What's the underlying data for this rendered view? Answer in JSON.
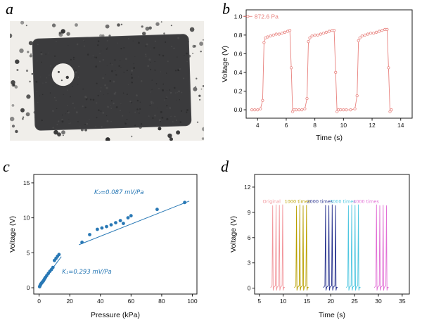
{
  "panels": {
    "a": {
      "label": "a"
    },
    "b": {
      "label": "b"
    },
    "c": {
      "label": "c"
    },
    "d": {
      "label": "d"
    }
  },
  "photo": {
    "background_color": "#f0eeea",
    "foam_color": "#3b3b3d"
  },
  "chart_data": [
    {
      "id": "chart-b",
      "type": "line",
      "title": "",
      "xlabel": "Time (s)",
      "ylabel": "Voltage (V)",
      "xlim": [
        3.2,
        14.8
      ],
      "ylim": [
        -0.09,
        1.07
      ],
      "xticks": [
        4,
        6,
        8,
        10,
        12,
        14
      ],
      "yticks": [
        0,
        0.2,
        0.4,
        0.6,
        0.8,
        1
      ],
      "ytick_labels": [
        "0.0",
        "0.2",
        "0.4",
        "0.6",
        "0.8",
        "1.0"
      ],
      "legend": {
        "label": "872.6 Pa",
        "color": "#e8817d",
        "x": 3.78,
        "y": 1.0
      },
      "series": [
        {
          "name": "872.6-Pa",
          "color": "#e8817d",
          "marker": "circle-open",
          "line": true,
          "x": [
            3.6,
            3.8,
            4.0,
            4.2,
            4.35,
            4.45,
            4.55,
            4.7,
            4.9,
            5.1,
            5.3,
            5.5,
            5.7,
            5.9,
            6.1,
            6.25,
            6.35,
            6.45,
            6.55,
            6.7,
            6.9,
            7.1,
            7.3,
            7.45,
            7.55,
            7.65,
            7.8,
            8.0,
            8.2,
            8.4,
            8.6,
            8.8,
            9.0,
            9.2,
            9.35,
            9.45,
            9.55,
            9.65,
            9.8,
            10.0,
            10.2,
            10.5,
            10.8,
            10.95,
            11.05,
            11.15,
            11.3,
            11.5,
            11.7,
            11.9,
            12.1,
            12.3,
            12.5,
            12.7,
            12.9,
            13.05,
            13.15,
            13.25,
            13.35
          ],
          "y": [
            0.0,
            0.0,
            0.0,
            0.01,
            0.1,
            0.72,
            0.77,
            0.78,
            0.79,
            0.8,
            0.81,
            0.81,
            0.82,
            0.83,
            0.84,
            0.85,
            0.45,
            -0.02,
            0.0,
            0.0,
            0.0,
            0.0,
            0.01,
            0.12,
            0.73,
            0.77,
            0.79,
            0.8,
            0.8,
            0.81,
            0.82,
            0.83,
            0.84,
            0.85,
            0.85,
            0.4,
            -0.02,
            0.0,
            0.0,
            0.0,
            0.0,
            0.0,
            0.01,
            0.15,
            0.74,
            0.77,
            0.79,
            0.8,
            0.81,
            0.82,
            0.82,
            0.83,
            0.84,
            0.85,
            0.86,
            0.86,
            0.45,
            -0.02,
            0.0
          ]
        }
      ]
    },
    {
      "id": "chart-c",
      "type": "scatter",
      "title": "",
      "xlabel": "Pressure (kPa)",
      "ylabel": "Voltage (V)",
      "xlim": [
        -3.5,
        103
      ],
      "ylim": [
        -0.9,
        16.2
      ],
      "xticks": [
        0,
        20,
        40,
        60,
        80,
        100
      ],
      "yticks": [
        0,
        5,
        10,
        15
      ],
      "series": [
        {
          "name": "pressure-response",
          "color": "#2878b5",
          "marker": "circle",
          "line": false,
          "x": [
            0.3,
            0.6,
            0.9,
            1.2,
            1.5,
            1.9,
            2.3,
            2.7,
            3.1,
            3.6,
            4.2,
            5.0,
            6.0,
            7.0,
            8.0,
            9.0,
            10.0,
            11.0,
            12.0,
            13.0,
            28,
            33,
            38,
            41,
            44,
            47,
            50,
            53,
            55,
            58,
            60,
            77,
            95
          ],
          "y": [
            0.15,
            0.3,
            0.45,
            0.55,
            0.65,
            0.75,
            0.85,
            0.95,
            1.1,
            1.3,
            1.5,
            1.75,
            2.05,
            2.35,
            2.6,
            2.9,
            3.9,
            4.2,
            4.5,
            4.75,
            6.5,
            7.6,
            8.35,
            8.55,
            8.75,
            9.0,
            9.3,
            9.6,
            9.2,
            10.0,
            10.3,
            11.2,
            12.2
          ]
        },
        {
          "name": "fit-K1",
          "color": "#2878b5",
          "marker": "none",
          "line": true,
          "width": 1,
          "x": [
            0,
            14.5
          ],
          "y": [
            0.2,
            4.45
          ]
        },
        {
          "name": "fit-K2",
          "color": "#2878b5",
          "marker": "none",
          "line": true,
          "width": 1,
          "x": [
            26,
            98
          ],
          "y": [
            6.15,
            12.4
          ]
        }
      ],
      "annotations": [
        {
          "text": "K₂=0.087 mV/Pa",
          "x": 36,
          "y": 13.4,
          "color": "#2878b5",
          "italic": true,
          "size": 8.5
        },
        {
          "text": "K₁=0.293 mV/Pa",
          "x": 15,
          "y": 2.0,
          "color": "#2878b5",
          "italic": true,
          "size": 8.5
        }
      ]
    },
    {
      "id": "chart-d",
      "type": "line",
      "title": "",
      "xlabel": "Time (s)",
      "ylabel": "Voltage (V)",
      "xlim": [
        4,
        36.5
      ],
      "ylim": [
        -0.7,
        13.5
      ],
      "xticks": [
        5,
        10,
        15,
        20,
        25,
        30,
        35
      ],
      "yticks": [
        0,
        3,
        6,
        9,
        12
      ],
      "series": [
        {
          "name": "original",
          "color": "#f2959b",
          "spike_x": [
            7.8,
            8.5,
            9.2,
            9.9
          ],
          "peaks": [
            9.8,
            9.9,
            9.85,
            9.9
          ],
          "line": true
        },
        {
          "name": "1000-times",
          "color": "#b9a000",
          "spike_x": [
            12.8,
            13.5,
            14.2,
            14.9
          ],
          "peaks": [
            9.75,
            9.9,
            9.8,
            9.85
          ],
          "line": true
        },
        {
          "name": "2000-times",
          "color": "#232e8c",
          "spike_x": [
            18.9,
            19.6,
            20.3,
            21.0
          ],
          "peaks": [
            9.85,
            9.8,
            9.9,
            9.8
          ],
          "line": true
        },
        {
          "name": "3000-times",
          "color": "#4cc6e0",
          "spike_x": [
            23.7,
            24.4,
            25.1,
            25.8
          ],
          "peaks": [
            9.8,
            9.9,
            9.85,
            9.9
          ],
          "line": true
        },
        {
          "name": "4000-times",
          "color": "#e26ed5",
          "spike_x": [
            29.6,
            30.3,
            31.0,
            31.7
          ],
          "peaks": [
            9.9,
            9.8,
            9.85,
            9.8
          ],
          "line": true
        }
      ],
      "annotations": [
        {
          "text": "Original",
          "x": 5.7,
          "y": 10.1,
          "color": "#f2959b",
          "size": 6.5
        },
        {
          "text": "1000 times",
          "x": 10.3,
          "y": 10.1,
          "color": "#b9a000",
          "size": 6.5
        },
        {
          "text": "2000 times",
          "x": 15.0,
          "y": 10.1,
          "color": "#232e8c",
          "size": 6.5
        },
        {
          "text": "3000 times",
          "x": 19.8,
          "y": 10.1,
          "color": "#4cc6e0",
          "size": 6.5
        },
        {
          "text": "4000 times",
          "x": 24.7,
          "y": 10.1,
          "color": "#e26ed5",
          "size": 6.5
        }
      ]
    }
  ]
}
